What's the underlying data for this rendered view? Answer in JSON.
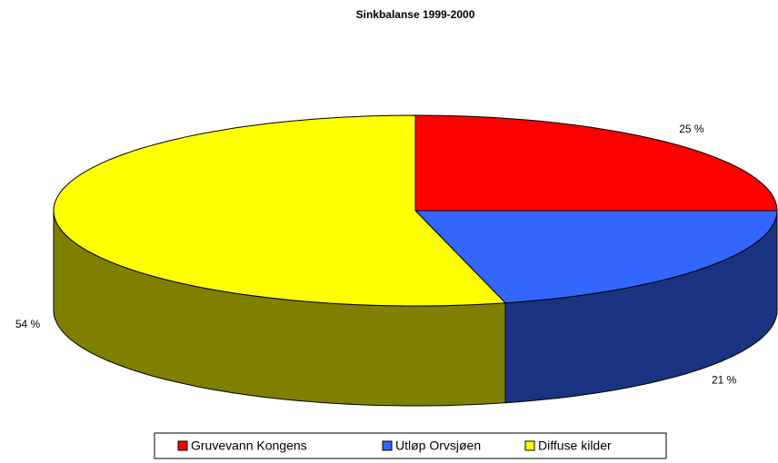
{
  "chart_data": {
    "type": "pie",
    "title": "Sinkbalanse 1999-2000",
    "categories": [
      "Gruvevann Kongens",
      "Utløp Orvsjøen",
      "Diffuse kilder"
    ],
    "values": [
      25,
      21,
      54
    ],
    "value_labels": [
      "25 %",
      "21 %",
      "54 %"
    ],
    "colors": [
      "#ff0000",
      "#3366ff",
      "#ffff00"
    ],
    "legend": "bottom"
  }
}
